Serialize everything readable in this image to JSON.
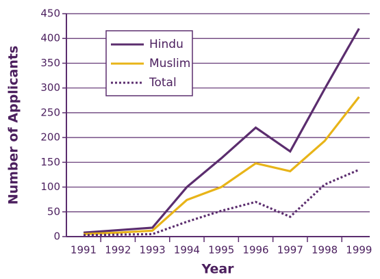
{
  "chart_data": {
    "type": "line",
    "xlabel": "Year",
    "ylabel": "Number of Applicants",
    "categories": [
      "1991",
      "1992",
      "1993",
      "1994",
      "1995",
      "1996",
      "1997",
      "1998",
      "1999"
    ],
    "series": [
      {
        "name": "Hindu",
        "color": "#5b2d6e",
        "style": "solid",
        "values": [
          8,
          13,
          18,
          100,
          158,
          220,
          172,
          298,
          420
        ]
      },
      {
        "name": "Muslim",
        "color": "#e8b418",
        "style": "solid",
        "values": [
          5,
          8,
          12,
          74,
          100,
          148,
          132,
          193,
          282
        ]
      },
      {
        "name": "Total",
        "color": "#5b2d6e",
        "style": "dotted",
        "values": [
          3,
          4,
          5,
          30,
          52,
          70,
          40,
          105,
          135
        ]
      }
    ],
    "ylim": [
      0,
      450
    ],
    "yticks": [
      0,
      50,
      100,
      150,
      200,
      250,
      300,
      350,
      400,
      450
    ],
    "grid": true
  }
}
